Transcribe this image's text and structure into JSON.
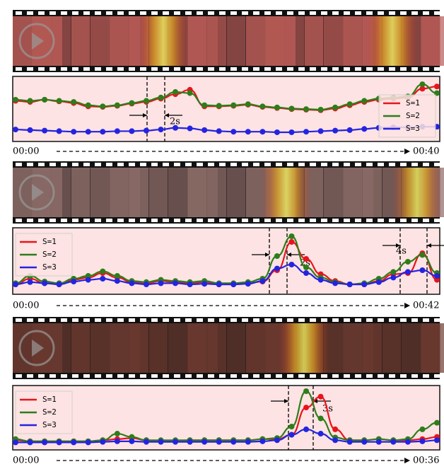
{
  "chart_data": [
    {
      "type": "line",
      "ylim": [
        0,
        1
      ],
      "legend": "center right",
      "annotations": [
        "2s"
      ],
      "x_start_label": "00:00",
      "x_end_label": "00:40",
      "series": [
        {
          "name": "S=1",
          "color": "#e8141c",
          "values": [
            0.66,
            0.64,
            0.68,
            0.65,
            0.62,
            0.56,
            0.55,
            0.57,
            0.61,
            0.64,
            0.7,
            0.78,
            0.86,
            0.56,
            0.56,
            0.57,
            0.59,
            0.55,
            0.53,
            0.51,
            0.5,
            0.49,
            0.52,
            0.58,
            0.64,
            0.68,
            0.7,
            0.72,
            0.88,
            0.92
          ]
        },
        {
          "name": "S=2",
          "color": "#2e7d1a",
          "values": [
            0.68,
            0.66,
            0.68,
            0.66,
            0.64,
            0.58,
            0.56,
            0.58,
            0.62,
            0.66,
            0.72,
            0.82,
            0.8,
            0.58,
            0.57,
            0.58,
            0.6,
            0.56,
            0.54,
            0.52,
            0.51,
            0.5,
            0.54,
            0.6,
            0.66,
            0.7,
            0.72,
            0.74,
            0.96,
            0.8
          ]
        },
        {
          "name": "S=3",
          "color": "#2424e0",
          "values": [
            0.14,
            0.13,
            0.12,
            0.11,
            0.1,
            0.1,
            0.1,
            0.11,
            0.11,
            0.12,
            0.14,
            0.17,
            0.16,
            0.13,
            0.11,
            0.1,
            0.1,
            0.1,
            0.09,
            0.09,
            0.1,
            0.11,
            0.12,
            0.13,
            0.15,
            0.17,
            0.18,
            0.18,
            0.19,
            0.19
          ]
        }
      ]
    },
    {
      "type": "line",
      "ylim": [
        0,
        1
      ],
      "legend": "upper left",
      "annotations": [
        "2s",
        "4s"
      ],
      "x_start_label": "00:00",
      "x_end_label": "00:42",
      "series": [
        {
          "name": "S=1",
          "color": "#e8141c",
          "values": [
            0.1,
            0.2,
            0.12,
            0.1,
            0.18,
            0.22,
            0.3,
            0.22,
            0.14,
            0.12,
            0.16,
            0.14,
            0.12,
            0.14,
            0.1,
            0.1,
            0.12,
            0.15,
            0.35,
            0.85,
            0.55,
            0.28,
            0.16,
            0.1,
            0.1,
            0.16,
            0.28,
            0.3,
            0.65,
            0.18
          ]
        },
        {
          "name": "S=2",
          "color": "#2e7d1a",
          "values": [
            0.12,
            0.25,
            0.15,
            0.12,
            0.2,
            0.25,
            0.33,
            0.25,
            0.16,
            0.14,
            0.18,
            0.16,
            0.14,
            0.16,
            0.12,
            0.12,
            0.14,
            0.2,
            0.6,
            0.95,
            0.4,
            0.22,
            0.14,
            0.1,
            0.12,
            0.2,
            0.32,
            0.5,
            0.62,
            0.3
          ]
        },
        {
          "name": "S=3",
          "color": "#2424e0",
          "values": [
            0.1,
            0.14,
            0.12,
            0.1,
            0.15,
            0.18,
            0.2,
            0.16,
            0.12,
            0.1,
            0.12,
            0.12,
            0.1,
            0.11,
            0.1,
            0.1,
            0.11,
            0.16,
            0.38,
            0.45,
            0.3,
            0.18,
            0.12,
            0.1,
            0.1,
            0.14,
            0.22,
            0.32,
            0.35,
            0.25
          ]
        }
      ]
    },
    {
      "type": "line",
      "ylim": [
        0,
        1
      ],
      "legend": "upper left",
      "annotations": [
        "3s"
      ],
      "x_start_label": "00:00",
      "x_end_label": "00:36",
      "series": [
        {
          "name": "S=1",
          "color": "#e8141c",
          "values": [
            0.1,
            0.08,
            0.08,
            0.08,
            0.08,
            0.08,
            0.1,
            0.12,
            0.14,
            0.1,
            0.09,
            0.09,
            0.1,
            0.1,
            0.1,
            0.1,
            0.1,
            0.12,
            0.12,
            0.2,
            0.7,
            0.9,
            0.3,
            0.1,
            0.1,
            0.12,
            0.1,
            0.1,
            0.12,
            0.16
          ]
        },
        {
          "name": "S=2",
          "color": "#2e7d1a",
          "values": [
            0.12,
            0.08,
            0.08,
            0.08,
            0.08,
            0.08,
            0.1,
            0.22,
            0.16,
            0.1,
            0.1,
            0.1,
            0.1,
            0.1,
            0.1,
            0.1,
            0.1,
            0.12,
            0.14,
            0.35,
            1.0,
            0.5,
            0.15,
            0.1,
            0.1,
            0.12,
            0.1,
            0.12,
            0.3,
            0.42
          ]
        },
        {
          "name": "S=3",
          "color": "#2424e0",
          "values": [
            0.06,
            0.06,
            0.06,
            0.06,
            0.06,
            0.06,
            0.07,
            0.08,
            0.08,
            0.07,
            0.07,
            0.07,
            0.07,
            0.07,
            0.07,
            0.07,
            0.07,
            0.08,
            0.1,
            0.2,
            0.3,
            0.22,
            0.1,
            0.07,
            0.07,
            0.07,
            0.07,
            0.07,
            0.08,
            0.1
          ]
        }
      ]
    }
  ]
}
